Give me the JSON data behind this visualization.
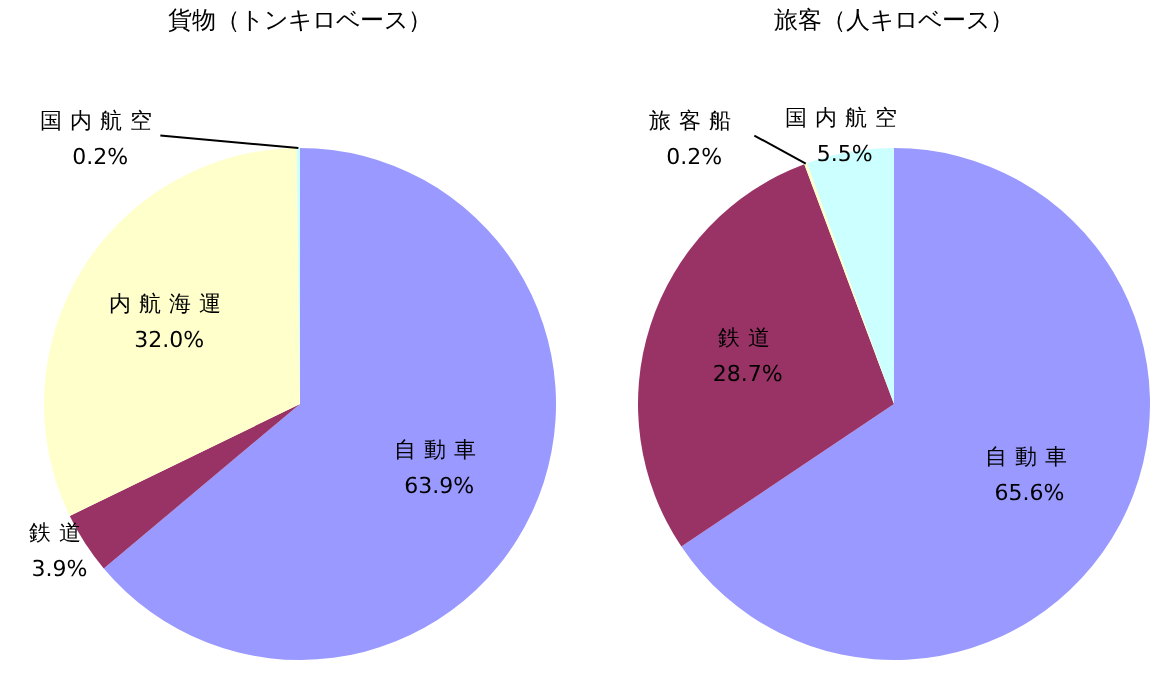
{
  "chart_data": [
    {
      "type": "pie",
      "title": "貨物（トンキロベース）",
      "categories": [
        "自動車",
        "鉄道",
        "内航海運",
        "国内航空"
      ],
      "values": [
        63.9,
        3.9,
        32.0,
        0.2
      ],
      "value_labels": [
        "63.9%",
        "3.9%",
        "32.0%",
        "0.2%"
      ],
      "colors": [
        "#9999ff",
        "#993366",
        "#ffffcc",
        "#ccffff"
      ]
    },
    {
      "type": "pie",
      "title": "旅客（人キロベース）",
      "categories": [
        "自動車",
        "鉄道",
        "旅客船",
        "国内航空"
      ],
      "values": [
        65.6,
        28.7,
        0.2,
        5.5
      ],
      "value_labels": [
        "65.6%",
        "28.7%",
        "0.2%",
        "5.5%"
      ],
      "colors": [
        "#9999ff",
        "#993366",
        "#ffffcc",
        "#ccffff"
      ]
    }
  ]
}
